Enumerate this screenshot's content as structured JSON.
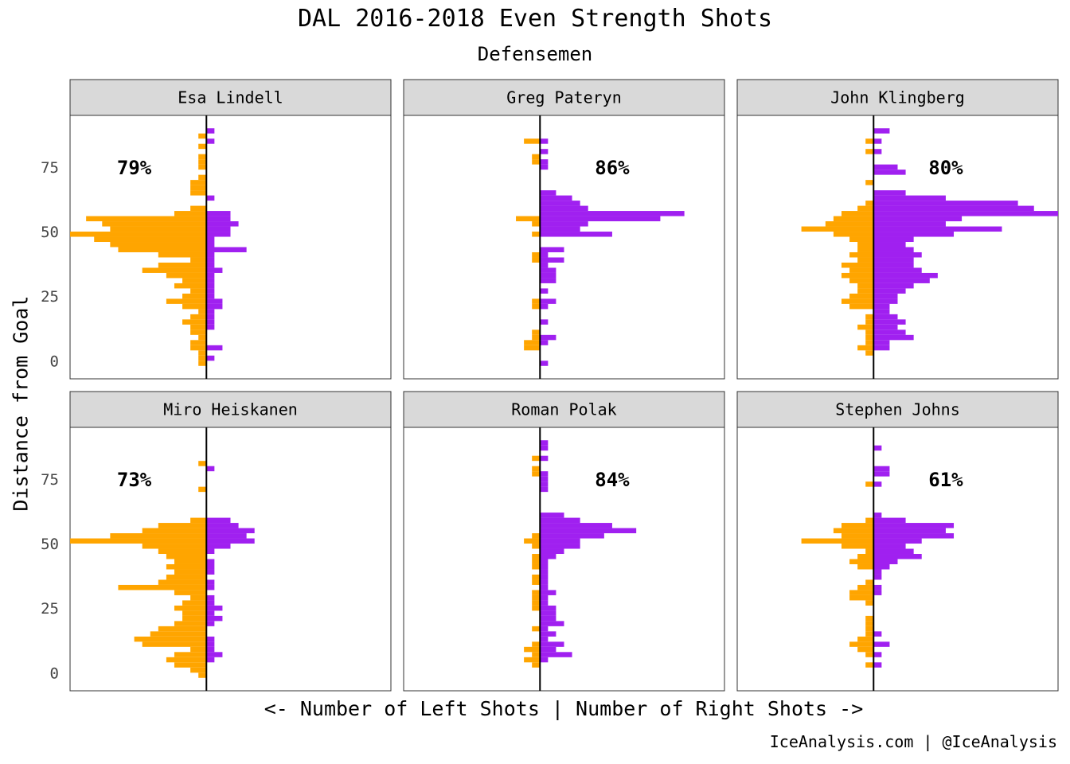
{
  "title": "DAL 2016-2018 Even Strength Shots",
  "subtitle": "Defensemen",
  "ylabel": "Distance from Goal",
  "xlabel": "<- Number of Left Shots | Number of Right Shots ->",
  "caption": "IceAnalysis.com | @IceAnalysis",
  "colors": {
    "left": "#FFA500",
    "right": "#A020F0",
    "strip_bg": "#D9D9D9"
  },
  "chart_data": {
    "type": "bar",
    "orientation": "horizontal-back-to-back",
    "y_ticks": [
      0,
      25,
      50,
      75
    ],
    "ylim": [
      -7,
      95
    ],
    "xlim": [
      -17,
      23
    ],
    "grid": false,
    "panels": [
      {
        "name": "Esa Lindell",
        "right_shot_pct": "79%",
        "bins": [
          -1,
          1,
          3,
          5,
          7,
          9,
          11,
          13,
          15,
          17,
          19,
          21,
          23,
          25,
          27,
          29,
          31,
          33,
          35,
          37,
          39,
          41,
          43,
          45,
          47,
          49,
          51,
          53,
          55,
          57,
          59,
          61,
          63,
          65,
          67,
          69,
          71,
          73,
          75,
          77,
          79,
          81,
          83,
          85,
          87,
          89
        ],
        "left": [
          1,
          1,
          1,
          2,
          2,
          1,
          2,
          2,
          3,
          2,
          1,
          3,
          5,
          3,
          2,
          4,
          3,
          5,
          8,
          6,
          2,
          6,
          11,
          12,
          14,
          17,
          12,
          13,
          15,
          4,
          2,
          0,
          0,
          2,
          2,
          2,
          1,
          0,
          1,
          1,
          1,
          0,
          1,
          0,
          1,
          0
        ],
        "right": [
          0,
          1,
          0,
          2,
          0,
          0,
          0,
          1,
          1,
          1,
          1,
          2,
          2,
          1,
          1,
          1,
          1,
          1,
          2,
          1,
          1,
          1,
          5,
          1,
          1,
          3,
          3,
          4,
          3,
          3,
          0,
          0,
          1,
          0,
          0,
          0,
          0,
          0,
          0,
          0,
          0,
          0,
          0,
          1,
          0,
          1
        ]
      },
      {
        "name": "Greg Pateryn",
        "right_shot_pct": "86%",
        "bins": [
          -1,
          1,
          3,
          5,
          7,
          9,
          11,
          13,
          15,
          17,
          19,
          21,
          23,
          25,
          27,
          29,
          31,
          33,
          35,
          37,
          39,
          41,
          43,
          45,
          47,
          49,
          51,
          53,
          55,
          57,
          59,
          61,
          63,
          65,
          67,
          69,
          71,
          73,
          75,
          77,
          79,
          81,
          83,
          85,
          87,
          89
        ],
        "left": [
          0,
          0,
          0,
          2,
          2,
          1,
          1,
          0,
          0,
          0,
          0,
          1,
          1,
          0,
          0,
          0,
          0,
          0,
          0,
          0,
          1,
          1,
          0,
          0,
          0,
          1,
          0,
          1,
          3,
          0,
          0,
          0,
          0,
          0,
          0,
          0,
          0,
          0,
          0,
          1,
          1,
          0,
          0,
          2,
          0,
          0
        ],
        "right": [
          1,
          0,
          0,
          0,
          1,
          2,
          0,
          0,
          1,
          0,
          0,
          1,
          2,
          0,
          1,
          0,
          2,
          2,
          2,
          1,
          3,
          1,
          3,
          0,
          0,
          9,
          5,
          6,
          15,
          18,
          6,
          5,
          4,
          2,
          0,
          0,
          0,
          0,
          1,
          1,
          0,
          1,
          0,
          1,
          0,
          0
        ]
      },
      {
        "name": "John Klingberg",
        "right_shot_pct": "80%",
        "bins": [
          -1,
          1,
          3,
          5,
          7,
          9,
          11,
          13,
          15,
          17,
          19,
          21,
          23,
          25,
          27,
          29,
          31,
          33,
          35,
          37,
          39,
          41,
          43,
          45,
          47,
          49,
          51,
          53,
          55,
          57,
          59,
          61,
          63,
          65,
          67,
          69,
          71,
          73,
          75,
          77,
          79,
          81,
          83,
          85,
          87,
          89
        ],
        "left": [
          0,
          0,
          1,
          2,
          1,
          1,
          1,
          2,
          1,
          1,
          0,
          3,
          4,
          3,
          2,
          2,
          3,
          4,
          3,
          4,
          2,
          3,
          2,
          2,
          3,
          5,
          9,
          6,
          5,
          4,
          2,
          1,
          0,
          0,
          0,
          1,
          0,
          0,
          0,
          0,
          0,
          1,
          0,
          1,
          0,
          0
        ],
        "right": [
          0,
          0,
          0,
          2,
          2,
          5,
          4,
          3,
          4,
          3,
          2,
          2,
          3,
          3,
          4,
          5,
          7,
          8,
          6,
          5,
          5,
          6,
          5,
          4,
          5,
          10,
          16,
          9,
          11,
          23,
          20,
          18,
          9,
          4,
          0,
          0,
          0,
          4,
          3,
          0,
          0,
          1,
          0,
          1,
          0,
          2
        ]
      },
      {
        "name": "Miro Heiskanen",
        "right_shot_pct": "73%",
        "bins": [
          -1,
          1,
          3,
          5,
          7,
          9,
          11,
          13,
          15,
          17,
          19,
          21,
          23,
          25,
          27,
          29,
          31,
          33,
          35,
          37,
          39,
          41,
          43,
          45,
          47,
          49,
          51,
          53,
          55,
          57,
          59,
          61,
          63,
          65,
          67,
          69,
          71,
          73,
          75,
          77,
          79,
          81,
          83,
          85,
          87,
          89
        ],
        "left": [
          1,
          2,
          4,
          5,
          4,
          2,
          8,
          9,
          7,
          6,
          4,
          3,
          3,
          4,
          3,
          2,
          4,
          11,
          6,
          5,
          4,
          5,
          4,
          5,
          6,
          8,
          17,
          12,
          8,
          6,
          2,
          0,
          0,
          0,
          0,
          0,
          1,
          0,
          0,
          0,
          0,
          1,
          0,
          0,
          0,
          0
        ],
        "right": [
          0,
          0,
          0,
          1,
          2,
          1,
          1,
          1,
          0,
          0,
          1,
          2,
          1,
          2,
          1,
          1,
          0,
          1,
          1,
          0,
          1,
          1,
          1,
          0,
          1,
          3,
          6,
          5,
          6,
          4,
          3,
          0,
          0,
          0,
          0,
          0,
          0,
          0,
          0,
          0,
          1,
          0,
          0,
          0,
          0,
          0
        ]
      },
      {
        "name": "Roman Polak",
        "right_shot_pct": "84%",
        "bins": [
          -1,
          1,
          3,
          5,
          7,
          9,
          11,
          13,
          15,
          17,
          19,
          21,
          23,
          25,
          27,
          29,
          31,
          33,
          35,
          37,
          39,
          41,
          43,
          45,
          47,
          49,
          51,
          53,
          55,
          57,
          59,
          61,
          63,
          65,
          67,
          69,
          71,
          73,
          75,
          77,
          79,
          81,
          83,
          85,
          87,
          89
        ],
        "left": [
          0,
          0,
          1,
          2,
          1,
          2,
          1,
          0,
          0,
          1,
          0,
          0,
          0,
          1,
          1,
          1,
          1,
          0,
          1,
          1,
          0,
          1,
          1,
          1,
          0,
          1,
          2,
          1,
          0,
          0,
          0,
          0,
          0,
          0,
          0,
          0,
          0,
          0,
          0,
          1,
          1,
          0,
          1,
          0,
          0,
          0
        ],
        "right": [
          0,
          0,
          0,
          1,
          4,
          2,
          3,
          1,
          2,
          1,
          3,
          2,
          2,
          2,
          1,
          1,
          2,
          1,
          1,
          1,
          1,
          1,
          1,
          2,
          3,
          5,
          5,
          8,
          12,
          9,
          5,
          3,
          0,
          0,
          0,
          0,
          1,
          1,
          1,
          1,
          0,
          0,
          1,
          0,
          1,
          1
        ]
      },
      {
        "name": "Stephen Johns",
        "right_shot_pct": "61%",
        "bins": [
          -1,
          1,
          3,
          5,
          7,
          9,
          11,
          13,
          15,
          17,
          19,
          21,
          23,
          25,
          27,
          29,
          31,
          33,
          35,
          37,
          39,
          41,
          43,
          45,
          47,
          49,
          51,
          53,
          55,
          57,
          59,
          61,
          63,
          65,
          67,
          69,
          71,
          73,
          75,
          77,
          79,
          81,
          83,
          85,
          87,
          89
        ],
        "left": [
          0,
          0,
          1,
          0,
          1,
          2,
          3,
          2,
          1,
          1,
          1,
          1,
          0,
          0,
          1,
          3,
          3,
          2,
          1,
          0,
          0,
          2,
          3,
          2,
          1,
          4,
          9,
          4,
          5,
          4,
          1,
          0,
          0,
          0,
          0,
          0,
          0,
          1,
          0,
          0,
          0,
          0,
          0,
          0,
          0,
          0
        ],
        "right": [
          0,
          0,
          1,
          0,
          1,
          0,
          2,
          0,
          1,
          0,
          0,
          0,
          0,
          0,
          0,
          0,
          1,
          1,
          0,
          1,
          1,
          2,
          3,
          6,
          5,
          4,
          6,
          10,
          9,
          10,
          4,
          1,
          0,
          0,
          0,
          0,
          0,
          1,
          0,
          2,
          2,
          0,
          0,
          0,
          1,
          0
        ]
      }
    ]
  }
}
